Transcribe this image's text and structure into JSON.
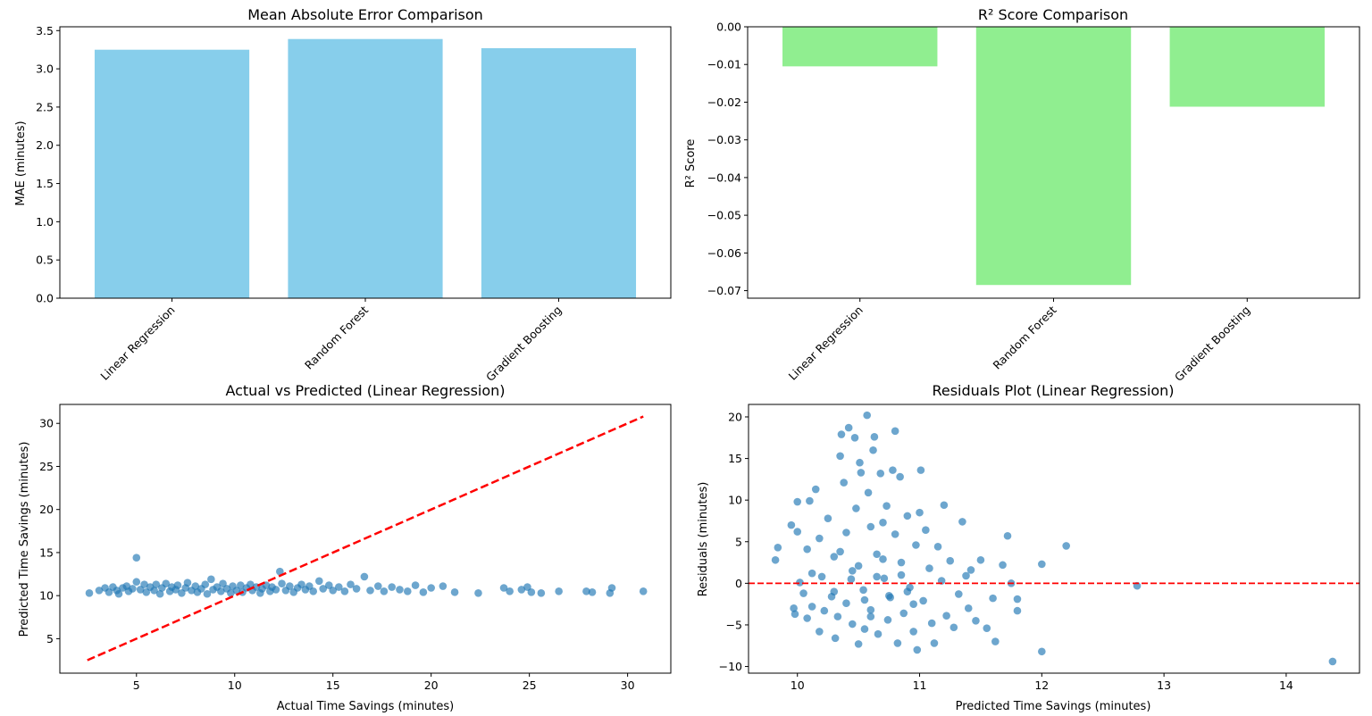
{
  "colors": {
    "mae_bar": "#87ceeb",
    "r2_bar": "#90ee90",
    "scatter": "#1f77b4",
    "reference_line": "#ff0000"
  },
  "chart_data": [
    {
      "id": "mae",
      "type": "bar",
      "title": "Mean Absolute Error Comparison",
      "xlabel": "",
      "ylabel": "MAE (minutes)",
      "categories": [
        "Linear Regression",
        "Random Forest",
        "Gradient Boosting"
      ],
      "values": [
        3.25,
        3.39,
        3.27
      ],
      "ylim": [
        0,
        3.55
      ],
      "yticks": [
        0.0,
        0.5,
        1.0,
        1.5,
        2.0,
        2.5,
        3.0,
        3.5
      ],
      "ytick_labels": [
        "0.0",
        "0.5",
        "1.0",
        "1.5",
        "2.0",
        "2.5",
        "3.0",
        "3.5"
      ],
      "grid": false
    },
    {
      "id": "r2",
      "type": "bar",
      "title": "R² Score Comparison",
      "xlabel": "",
      "ylabel": "R² Score",
      "categories": [
        "Linear Regression",
        "Random Forest",
        "Gradient Boosting"
      ],
      "values": [
        -0.0105,
        -0.0685,
        -0.0212
      ],
      "ylim": [
        -0.072,
        0.0
      ],
      "yticks": [
        0.0,
        -0.01,
        -0.02,
        -0.03,
        -0.04,
        -0.05,
        -0.06,
        -0.07
      ],
      "ytick_labels": [
        "0.00",
        "−0.01",
        "−0.02",
        "−0.03",
        "−0.04",
        "−0.05",
        "−0.06",
        "−0.07"
      ],
      "grid": false
    },
    {
      "id": "actual_vs_pred",
      "type": "scatter",
      "title": "Actual vs Predicted (Linear Regression)",
      "xlabel": "Actual Time Savings (minutes)",
      "ylabel": "Predicted Time Savings (minutes)",
      "xlim": [
        1.1,
        32.2
      ],
      "ylim": [
        1.0,
        32.2
      ],
      "xticks": [
        5,
        10,
        15,
        20,
        25,
        30
      ],
      "xtick_labels": [
        "5",
        "10",
        "15",
        "20",
        "25",
        "30"
      ],
      "yticks": [
        5,
        10,
        15,
        20,
        25,
        30
      ],
      "ytick_labels": [
        "5",
        "10",
        "15",
        "20",
        "25",
        "30"
      ],
      "reference_line": {
        "x": [
          2.5,
          30.8
        ],
        "y": [
          2.5,
          30.8
        ],
        "style": "dashed"
      },
      "points": [
        [
          2.6,
          10.3
        ],
        [
          3.1,
          10.6
        ],
        [
          3.4,
          10.9
        ],
        [
          3.6,
          10.4
        ],
        [
          3.8,
          11.0
        ],
        [
          4.0,
          10.6
        ],
        [
          4.1,
          10.2
        ],
        [
          4.3,
          10.9
        ],
        [
          4.5,
          11.1
        ],
        [
          4.6,
          10.5
        ],
        [
          4.8,
          10.8
        ],
        [
          5.0,
          14.4
        ],
        [
          5.0,
          11.6
        ],
        [
          5.2,
          10.7
        ],
        [
          5.4,
          11.3
        ],
        [
          5.5,
          10.4
        ],
        [
          5.7,
          11.0
        ],
        [
          5.9,
          10.6
        ],
        [
          6.0,
          11.3
        ],
        [
          6.2,
          10.2
        ],
        [
          6.3,
          10.9
        ],
        [
          6.5,
          11.4
        ],
        [
          6.7,
          10.5
        ],
        [
          6.8,
          11.0
        ],
        [
          7.0,
          10.7
        ],
        [
          7.1,
          11.2
        ],
        [
          7.3,
          10.3
        ],
        [
          7.5,
          10.9
        ],
        [
          7.6,
          11.5
        ],
        [
          7.8,
          10.6
        ],
        [
          8.0,
          11.1
        ],
        [
          8.1,
          10.4
        ],
        [
          8.3,
          10.8
        ],
        [
          8.5,
          11.3
        ],
        [
          8.6,
          10.2
        ],
        [
          8.8,
          11.9
        ],
        [
          8.9,
          10.7
        ],
        [
          9.1,
          11.0
        ],
        [
          9.3,
          10.5
        ],
        [
          9.4,
          11.4
        ],
        [
          9.6,
          10.8
        ],
        [
          9.8,
          10.3
        ],
        [
          9.9,
          11.1
        ],
        [
          10.1,
          10.6
        ],
        [
          10.3,
          11.2
        ],
        [
          10.4,
          10.4
        ],
        [
          10.6,
          10.9
        ],
        [
          10.8,
          11.3
        ],
        [
          10.9,
          10.6
        ],
        [
          11.1,
          11.0
        ],
        [
          11.3,
          10.3
        ],
        [
          11.4,
          10.8
        ],
        [
          11.6,
          11.2
        ],
        [
          11.8,
          10.5
        ],
        [
          11.9,
          11.0
        ],
        [
          12.1,
          10.7
        ],
        [
          12.3,
          12.8
        ],
        [
          12.4,
          11.4
        ],
        [
          12.6,
          10.6
        ],
        [
          12.8,
          11.1
        ],
        [
          13.0,
          10.4
        ],
        [
          13.2,
          10.9
        ],
        [
          13.4,
          11.3
        ],
        [
          13.6,
          10.7
        ],
        [
          13.8,
          11.1
        ],
        [
          14.0,
          10.5
        ],
        [
          14.3,
          11.7
        ],
        [
          14.5,
          10.8
        ],
        [
          14.8,
          11.2
        ],
        [
          15.0,
          10.6
        ],
        [
          15.3,
          11.0
        ],
        [
          15.6,
          10.5
        ],
        [
          15.9,
          11.3
        ],
        [
          16.2,
          10.8
        ],
        [
          16.6,
          12.2
        ],
        [
          16.9,
          10.6
        ],
        [
          17.3,
          11.1
        ],
        [
          17.6,
          10.5
        ],
        [
          18.0,
          11.0
        ],
        [
          18.4,
          10.7
        ],
        [
          18.8,
          10.5
        ],
        [
          19.2,
          11.2
        ],
        [
          19.6,
          10.4
        ],
        [
          20.0,
          10.9
        ],
        [
          20.6,
          11.1
        ],
        [
          21.2,
          10.4
        ],
        [
          22.4,
          10.3
        ],
        [
          23.7,
          10.9
        ],
        [
          24.0,
          10.5
        ],
        [
          24.6,
          10.7
        ],
        [
          24.9,
          11.0
        ],
        [
          25.1,
          10.4
        ],
        [
          25.6,
          10.3
        ],
        [
          26.5,
          10.5
        ],
        [
          27.9,
          10.5
        ],
        [
          28.2,
          10.4
        ],
        [
          29.1,
          10.3
        ],
        [
          29.2,
          10.9
        ],
        [
          30.8,
          10.5
        ]
      ]
    },
    {
      "id": "residuals",
      "type": "scatter",
      "title": "Residuals Plot (Linear Regression)",
      "xlabel": "Predicted Time Savings (minutes)",
      "ylabel": "Residuals (minutes)",
      "xlim": [
        9.6,
        14.6
      ],
      "ylim": [
        -10.8,
        21.5
      ],
      "xticks": [
        10,
        11,
        12,
        13,
        14
      ],
      "xtick_labels": [
        "10",
        "11",
        "12",
        "13",
        "14"
      ],
      "yticks": [
        -10,
        -5,
        0,
        5,
        10,
        15,
        20
      ],
      "ytick_labels": [
        "−10",
        "−5",
        "0",
        "5",
        "10",
        "15",
        "20"
      ],
      "reference_line": {
        "y": 0,
        "style": "dashed"
      },
      "points": [
        [
          9.82,
          2.8
        ],
        [
          9.84,
          4.3
        ],
        [
          9.95,
          7.0
        ],
        [
          9.97,
          -3.0
        ],
        [
          9.98,
          -3.7
        ],
        [
          10.0,
          9.8
        ],
        [
          10.0,
          6.2
        ],
        [
          10.02,
          0.1
        ],
        [
          10.05,
          -1.2
        ],
        [
          10.08,
          4.1
        ],
        [
          10.08,
          -4.2
        ],
        [
          10.1,
          9.9
        ],
        [
          10.12,
          1.2
        ],
        [
          10.12,
          -2.8
        ],
        [
          10.15,
          11.3
        ],
        [
          10.18,
          5.4
        ],
        [
          10.18,
          -5.8
        ],
        [
          10.2,
          0.8
        ],
        [
          10.22,
          -3.3
        ],
        [
          10.25,
          7.8
        ],
        [
          10.28,
          -1.6
        ],
        [
          10.3,
          3.2
        ],
        [
          10.31,
          -6.6
        ],
        [
          10.33,
          -4.0
        ],
        [
          10.35,
          15.3
        ],
        [
          10.36,
          17.9
        ],
        [
          10.38,
          12.1
        ],
        [
          10.4,
          6.1
        ],
        [
          10.4,
          -2.4
        ],
        [
          10.42,
          18.7
        ],
        [
          10.44,
          0.5
        ],
        [
          10.45,
          -4.9
        ],
        [
          10.47,
          17.5
        ],
        [
          10.48,
          9.0
        ],
        [
          10.5,
          2.1
        ],
        [
          10.5,
          -7.3
        ],
        [
          10.51,
          14.5
        ],
        [
          10.52,
          13.3
        ],
        [
          10.54,
          -0.8
        ],
        [
          10.55,
          -5.5
        ],
        [
          10.57,
          20.2
        ],
        [
          10.58,
          10.9
        ],
        [
          10.6,
          6.8
        ],
        [
          10.6,
          -3.2
        ],
        [
          10.62,
          16.0
        ],
        [
          10.63,
          17.6
        ],
        [
          10.65,
          3.5
        ],
        [
          10.66,
          -6.1
        ],
        [
          10.68,
          13.2
        ],
        [
          10.7,
          7.3
        ],
        [
          10.71,
          0.6
        ],
        [
          10.73,
          9.3
        ],
        [
          10.74,
          -4.4
        ],
        [
          10.76,
          -1.7
        ],
        [
          10.78,
          13.6
        ],
        [
          10.8,
          18.3
        ],
        [
          10.8,
          5.9
        ],
        [
          10.82,
          -7.2
        ],
        [
          10.84,
          12.8
        ],
        [
          10.85,
          2.5
        ],
        [
          10.87,
          -3.6
        ],
        [
          10.9,
          8.1
        ],
        [
          10.92,
          -0.5
        ],
        [
          10.95,
          -5.8
        ],
        [
          10.97,
          4.6
        ],
        [
          10.98,
          -8.0
        ],
        [
          11.0,
          8.5
        ],
        [
          11.01,
          13.6
        ],
        [
          11.03,
          -2.1
        ],
        [
          11.05,
          6.4
        ],
        [
          11.08,
          1.8
        ],
        [
          11.1,
          -4.8
        ],
        [
          11.12,
          -7.2
        ],
        [
          11.15,
          4.4
        ],
        [
          11.18,
          0.3
        ],
        [
          11.2,
          9.4
        ],
        [
          11.22,
          -3.9
        ],
        [
          11.25,
          2.7
        ],
        [
          11.28,
          -5.3
        ],
        [
          11.32,
          -1.3
        ],
        [
          11.35,
          7.4
        ],
        [
          11.38,
          0.9
        ],
        [
          11.4,
          -3.0
        ],
        [
          11.42,
          1.6
        ],
        [
          11.46,
          -4.5
        ],
        [
          11.5,
          2.8
        ],
        [
          11.55,
          -5.4
        ],
        [
          11.6,
          -1.8
        ],
        [
          11.62,
          -7.0
        ],
        [
          11.68,
          2.2
        ],
        [
          11.72,
          5.7
        ],
        [
          11.75,
          0.0
        ],
        [
          11.8,
          -1.9
        ],
        [
          11.8,
          -3.3
        ],
        [
          12.0,
          2.3
        ],
        [
          12.0,
          -8.2
        ],
        [
          12.2,
          4.5
        ],
        [
          12.78,
          -0.3
        ],
        [
          14.38,
          -9.4
        ],
        [
          10.3,
          -1.0
        ],
        [
          10.45,
          1.5
        ],
        [
          10.55,
          -2.0
        ],
        [
          10.65,
          0.8
        ],
        [
          10.75,
          -1.5
        ],
        [
          10.85,
          1.0
        ],
        [
          10.95,
          -2.5
        ],
        [
          10.35,
          3.8
        ],
        [
          10.6,
          -4.0
        ],
        [
          10.7,
          2.9
        ],
        [
          10.9,
          -1.0
        ]
      ]
    }
  ]
}
